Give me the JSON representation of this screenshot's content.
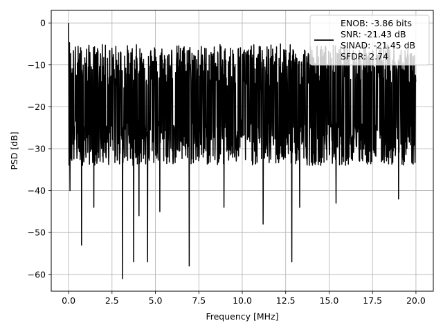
{
  "chart_data": {
    "type": "line",
    "xlabel": "Frequency [MHz]",
    "ylabel": "PSD [dB]",
    "xlim": [
      -1.0,
      21.0
    ],
    "ylim": [
      -64.0,
      3.0
    ],
    "xticks": [
      0.0,
      2.5,
      5.0,
      7.5,
      10.0,
      12.5,
      15.0,
      17.5,
      20.0
    ],
    "xtick_labels": [
      "0.0",
      "2.5",
      "5.0",
      "7.5",
      "10.0",
      "12.5",
      "15.0",
      "17.5",
      "20.0"
    ],
    "yticks": [
      0,
      -10,
      -20,
      -30,
      -40,
      -50,
      -60
    ],
    "ytick_labels": [
      "0",
      "−10",
      "−20",
      "−30",
      "−40",
      "−50",
      "−60"
    ],
    "grid": true,
    "legend_position": "top-right",
    "series": [
      {
        "name": "ENOB: -3.86 bits\nSNR: -21.43 dB\nSINAD: -21.45 dB\nSFDR: 2.74",
        "color": "#000000",
        "x": [
          0.0,
          0.05,
          0.1,
          0.2,
          0.3,
          0.5,
          0.7,
          1.0,
          1.5,
          2.0,
          3.0,
          4.0,
          5.0,
          6.0,
          7.0,
          8.0,
          9.0,
          10.0,
          11.0,
          12.0,
          13.0,
          14.0,
          15.0,
          16.0,
          17.0,
          18.0,
          19.0,
          20.0
        ],
        "y": [
          0.0,
          -12,
          -20,
          -22,
          -21,
          -20,
          -21,
          -20,
          -21,
          -20,
          -21,
          -20,
          -20,
          -21,
          -20,
          -21,
          -20,
          -20,
          -21,
          -20,
          -21,
          -20,
          -20,
          -21,
          -20,
          -21,
          -20,
          -21
        ],
        "dips": [
          {
            "x": 0.08,
            "y": -40
          },
          {
            "x": 0.75,
            "y": -53
          },
          {
            "x": 1.45,
            "y": -44
          },
          {
            "x": 3.1,
            "y": -61
          },
          {
            "x": 3.75,
            "y": -57
          },
          {
            "x": 4.05,
            "y": -46
          },
          {
            "x": 4.55,
            "y": -57
          },
          {
            "x": 5.25,
            "y": -45
          },
          {
            "x": 6.95,
            "y": -58
          },
          {
            "x": 8.95,
            "y": -44
          },
          {
            "x": 11.2,
            "y": -48
          },
          {
            "x": 12.85,
            "y": -57
          },
          {
            "x": 13.3,
            "y": -44
          },
          {
            "x": 15.4,
            "y": -43
          },
          {
            "x": 19.0,
            "y": -42
          }
        ],
        "peaks": [
          {
            "x": 4.6,
            "y": -8
          },
          {
            "x": 6.6,
            "y": -6
          },
          {
            "x": 8.2,
            "y": -7
          },
          {
            "x": 12.2,
            "y": -5
          },
          {
            "x": 15.7,
            "y": -7
          },
          {
            "x": 17.3,
            "y": -7
          },
          {
            "x": 19.4,
            "y": -8
          }
        ],
        "band_upper": -12,
        "band_lower": -29
      }
    ]
  }
}
